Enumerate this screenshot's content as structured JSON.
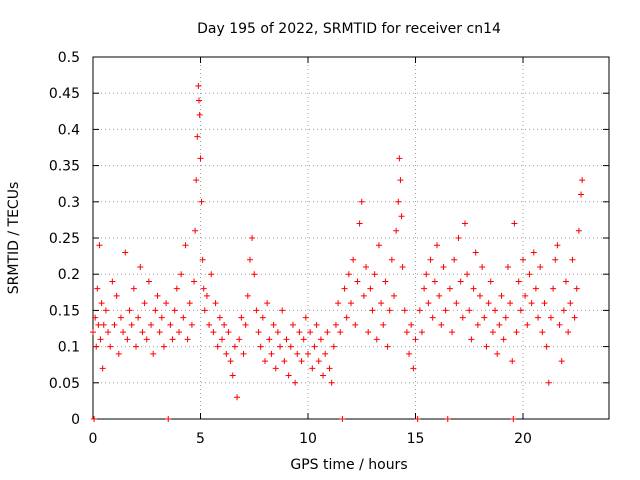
{
  "chart_data": {
    "type": "scatter",
    "title": "Day 195 of 2022, SRMTID for receiver cn14",
    "xlabel": "GPS time / hours",
    "ylabel": "SRMTID / TECUs",
    "xlim": [
      0,
      24
    ],
    "ylim": [
      0,
      0.5
    ],
    "x_ticks": [
      0,
      5,
      10,
      15,
      20
    ],
    "x_tick_labels": [
      "0",
      "5",
      "10",
      "15",
      "20"
    ],
    "y_ticks": [
      0,
      0.05,
      0.1,
      0.15,
      0.2,
      0.25,
      0.3,
      0.35,
      0.4,
      0.45,
      0.5
    ],
    "y_tick_labels": [
      "0",
      "0.05",
      "0.1",
      "0.15",
      "0.2",
      "0.25",
      "0.3",
      "0.35",
      "0.4",
      "0.45",
      "0.5"
    ],
    "grid": true,
    "marker": "+",
    "color": "#ff0000",
    "series": [
      {
        "name": "SRMTID",
        "points": [
          [
            0.0,
            0.12
          ],
          [
            0.05,
            0.0
          ],
          [
            0.1,
            0.14
          ],
          [
            0.15,
            0.1
          ],
          [
            0.2,
            0.18
          ],
          [
            0.25,
            0.13
          ],
          [
            0.3,
            0.24
          ],
          [
            0.35,
            0.11
          ],
          [
            0.4,
            0.16
          ],
          [
            0.45,
            0.07
          ],
          [
            0.5,
            0.13
          ],
          [
            0.6,
            0.15
          ],
          [
            0.7,
            0.12
          ],
          [
            0.8,
            0.1
          ],
          [
            0.9,
            0.19
          ],
          [
            1.0,
            0.13
          ],
          [
            1.1,
            0.17
          ],
          [
            1.2,
            0.09
          ],
          [
            1.3,
            0.14
          ],
          [
            1.4,
            0.12
          ],
          [
            1.5,
            0.23
          ],
          [
            1.6,
            0.11
          ],
          [
            1.7,
            0.15
          ],
          [
            1.8,
            0.13
          ],
          [
            1.9,
            0.18
          ],
          [
            2.0,
            0.1
          ],
          [
            2.1,
            0.14
          ],
          [
            2.2,
            0.21
          ],
          [
            2.3,
            0.12
          ],
          [
            2.4,
            0.16
          ],
          [
            2.5,
            0.11
          ],
          [
            2.6,
            0.19
          ],
          [
            2.7,
            0.13
          ],
          [
            2.8,
            0.09
          ],
          [
            2.9,
            0.15
          ],
          [
            3.0,
            0.17
          ],
          [
            3.1,
            0.12
          ],
          [
            3.2,
            0.14
          ],
          [
            3.3,
            0.1
          ],
          [
            3.4,
            0.16
          ],
          [
            3.5,
            0.0
          ],
          [
            3.6,
            0.13
          ],
          [
            3.7,
            0.11
          ],
          [
            3.8,
            0.15
          ],
          [
            3.9,
            0.18
          ],
          [
            4.0,
            0.12
          ],
          [
            4.1,
            0.2
          ],
          [
            4.2,
            0.14
          ],
          [
            4.3,
            0.24
          ],
          [
            4.4,
            0.11
          ],
          [
            4.5,
            0.16
          ],
          [
            4.6,
            0.13
          ],
          [
            4.7,
            0.19
          ],
          [
            4.75,
            0.26
          ],
          [
            4.8,
            0.33
          ],
          [
            4.85,
            0.39
          ],
          [
            4.9,
            0.46
          ],
          [
            4.93,
            0.44
          ],
          [
            4.96,
            0.42
          ],
          [
            5.0,
            0.36
          ],
          [
            5.05,
            0.3
          ],
          [
            5.1,
            0.22
          ],
          [
            5.15,
            0.18
          ],
          [
            5.2,
            0.15
          ],
          [
            5.3,
            0.17
          ],
          [
            5.4,
            0.13
          ],
          [
            5.5,
            0.2
          ],
          [
            5.6,
            0.12
          ],
          [
            5.7,
            0.16
          ],
          [
            5.8,
            0.1
          ],
          [
            5.9,
            0.14
          ],
          [
            6.0,
            0.11
          ],
          [
            6.1,
            0.13
          ],
          [
            6.2,
            0.09
          ],
          [
            6.3,
            0.12
          ],
          [
            6.4,
            0.08
          ],
          [
            6.5,
            0.06
          ],
          [
            6.6,
            0.1
          ],
          [
            6.7,
            0.03
          ],
          [
            6.8,
            0.11
          ],
          [
            6.9,
            0.14
          ],
          [
            7.0,
            0.09
          ],
          [
            7.1,
            0.13
          ],
          [
            7.2,
            0.17
          ],
          [
            7.3,
            0.22
          ],
          [
            7.4,
            0.25
          ],
          [
            7.5,
            0.2
          ],
          [
            7.6,
            0.15
          ],
          [
            7.7,
            0.12
          ],
          [
            7.8,
            0.1
          ],
          [
            7.9,
            0.14
          ],
          [
            8.0,
            0.08
          ],
          [
            8.1,
            0.16
          ],
          [
            8.2,
            0.11
          ],
          [
            8.3,
            0.09
          ],
          [
            8.4,
            0.13
          ],
          [
            8.5,
            0.07
          ],
          [
            8.6,
            0.12
          ],
          [
            8.7,
            0.1
          ],
          [
            8.8,
            0.15
          ],
          [
            8.9,
            0.08
          ],
          [
            9.0,
            0.11
          ],
          [
            9.1,
            0.06
          ],
          [
            9.2,
            0.1
          ],
          [
            9.3,
            0.13
          ],
          [
            9.4,
            0.05
          ],
          [
            9.5,
            0.09
          ],
          [
            9.6,
            0.12
          ],
          [
            9.7,
            0.08
          ],
          [
            9.8,
            0.11
          ],
          [
            9.9,
            0.14
          ],
          [
            10.0,
            0.09
          ],
          [
            10.1,
            0.12
          ],
          [
            10.2,
            0.07
          ],
          [
            10.3,
            0.1
          ],
          [
            10.4,
            0.13
          ],
          [
            10.5,
            0.08
          ],
          [
            10.6,
            0.11
          ],
          [
            10.7,
            0.06
          ],
          [
            10.8,
            0.09
          ],
          [
            10.9,
            0.12
          ],
          [
            11.0,
            0.07
          ],
          [
            11.1,
            0.05
          ],
          [
            11.2,
            0.1
          ],
          [
            11.3,
            0.13
          ],
          [
            11.4,
            0.16
          ],
          [
            11.5,
            0.12
          ],
          [
            11.6,
            0.0
          ],
          [
            11.7,
            0.18
          ],
          [
            11.8,
            0.14
          ],
          [
            11.9,
            0.2
          ],
          [
            12.0,
            0.16
          ],
          [
            12.1,
            0.22
          ],
          [
            12.2,
            0.13
          ],
          [
            12.3,
            0.19
          ],
          [
            12.4,
            0.27
          ],
          [
            12.5,
            0.3
          ],
          [
            12.6,
            0.17
          ],
          [
            12.7,
            0.21
          ],
          [
            12.8,
            0.12
          ],
          [
            12.9,
            0.18
          ],
          [
            13.0,
            0.15
          ],
          [
            13.1,
            0.2
          ],
          [
            13.2,
            0.11
          ],
          [
            13.3,
            0.24
          ],
          [
            13.4,
            0.16
          ],
          [
            13.5,
            0.13
          ],
          [
            13.6,
            0.19
          ],
          [
            13.7,
            0.1
          ],
          [
            13.8,
            0.15
          ],
          [
            13.9,
            0.22
          ],
          [
            14.0,
            0.17
          ],
          [
            14.1,
            0.26
          ],
          [
            14.2,
            0.3
          ],
          [
            14.25,
            0.36
          ],
          [
            14.3,
            0.33
          ],
          [
            14.35,
            0.28
          ],
          [
            14.4,
            0.21
          ],
          [
            14.5,
            0.15
          ],
          [
            14.6,
            0.12
          ],
          [
            14.7,
            0.09
          ],
          [
            14.8,
            0.13
          ],
          [
            14.9,
            0.07
          ],
          [
            15.0,
            0.11
          ],
          [
            15.1,
            0.0
          ],
          [
            15.2,
            0.15
          ],
          [
            15.3,
            0.12
          ],
          [
            15.4,
            0.18
          ],
          [
            15.5,
            0.2
          ],
          [
            15.6,
            0.16
          ],
          [
            15.7,
            0.22
          ],
          [
            15.8,
            0.14
          ],
          [
            15.9,
            0.19
          ],
          [
            16.0,
            0.24
          ],
          [
            16.1,
            0.17
          ],
          [
            16.2,
            0.13
          ],
          [
            16.3,
            0.21
          ],
          [
            16.4,
            0.15
          ],
          [
            16.5,
            0.0
          ],
          [
            16.6,
            0.18
          ],
          [
            16.7,
            0.12
          ],
          [
            16.8,
            0.22
          ],
          [
            16.9,
            0.16
          ],
          [
            17.0,
            0.25
          ],
          [
            17.1,
            0.19
          ],
          [
            17.2,
            0.14
          ],
          [
            17.3,
            0.27
          ],
          [
            17.4,
            0.2
          ],
          [
            17.5,
            0.15
          ],
          [
            17.6,
            0.11
          ],
          [
            17.7,
            0.18
          ],
          [
            17.8,
            0.23
          ],
          [
            17.9,
            0.13
          ],
          [
            18.0,
            0.17
          ],
          [
            18.1,
            0.21
          ],
          [
            18.2,
            0.14
          ],
          [
            18.3,
            0.1
          ],
          [
            18.4,
            0.16
          ],
          [
            18.5,
            0.19
          ],
          [
            18.6,
            0.12
          ],
          [
            18.7,
            0.15
          ],
          [
            18.8,
            0.09
          ],
          [
            18.9,
            0.13
          ],
          [
            19.0,
            0.17
          ],
          [
            19.1,
            0.11
          ],
          [
            19.2,
            0.14
          ],
          [
            19.3,
            0.21
          ],
          [
            19.4,
            0.16
          ],
          [
            19.5,
            0.08
          ],
          [
            19.55,
            0.0
          ],
          [
            19.6,
            0.27
          ],
          [
            19.7,
            0.12
          ],
          [
            19.8,
            0.19
          ],
          [
            19.9,
            0.15
          ],
          [
            20.0,
            0.22
          ],
          [
            20.1,
            0.17
          ],
          [
            20.2,
            0.13
          ],
          [
            20.3,
            0.2
          ],
          [
            20.4,
            0.16
          ],
          [
            20.5,
            0.23
          ],
          [
            20.6,
            0.18
          ],
          [
            20.7,
            0.14
          ],
          [
            20.8,
            0.21
          ],
          [
            20.9,
            0.12
          ],
          [
            21.0,
            0.16
          ],
          [
            21.1,
            0.1
          ],
          [
            21.2,
            0.05
          ],
          [
            21.3,
            0.14
          ],
          [
            21.4,
            0.18
          ],
          [
            21.5,
            0.22
          ],
          [
            21.6,
            0.24
          ],
          [
            21.7,
            0.13
          ],
          [
            21.8,
            0.08
          ],
          [
            21.9,
            0.15
          ],
          [
            22.0,
            0.19
          ],
          [
            22.1,
            0.12
          ],
          [
            22.2,
            0.16
          ],
          [
            22.3,
            0.22
          ],
          [
            22.4,
            0.14
          ],
          [
            22.5,
            0.18
          ],
          [
            22.6,
            0.26
          ],
          [
            22.7,
            0.31
          ],
          [
            22.75,
            0.33
          ]
        ]
      }
    ]
  }
}
